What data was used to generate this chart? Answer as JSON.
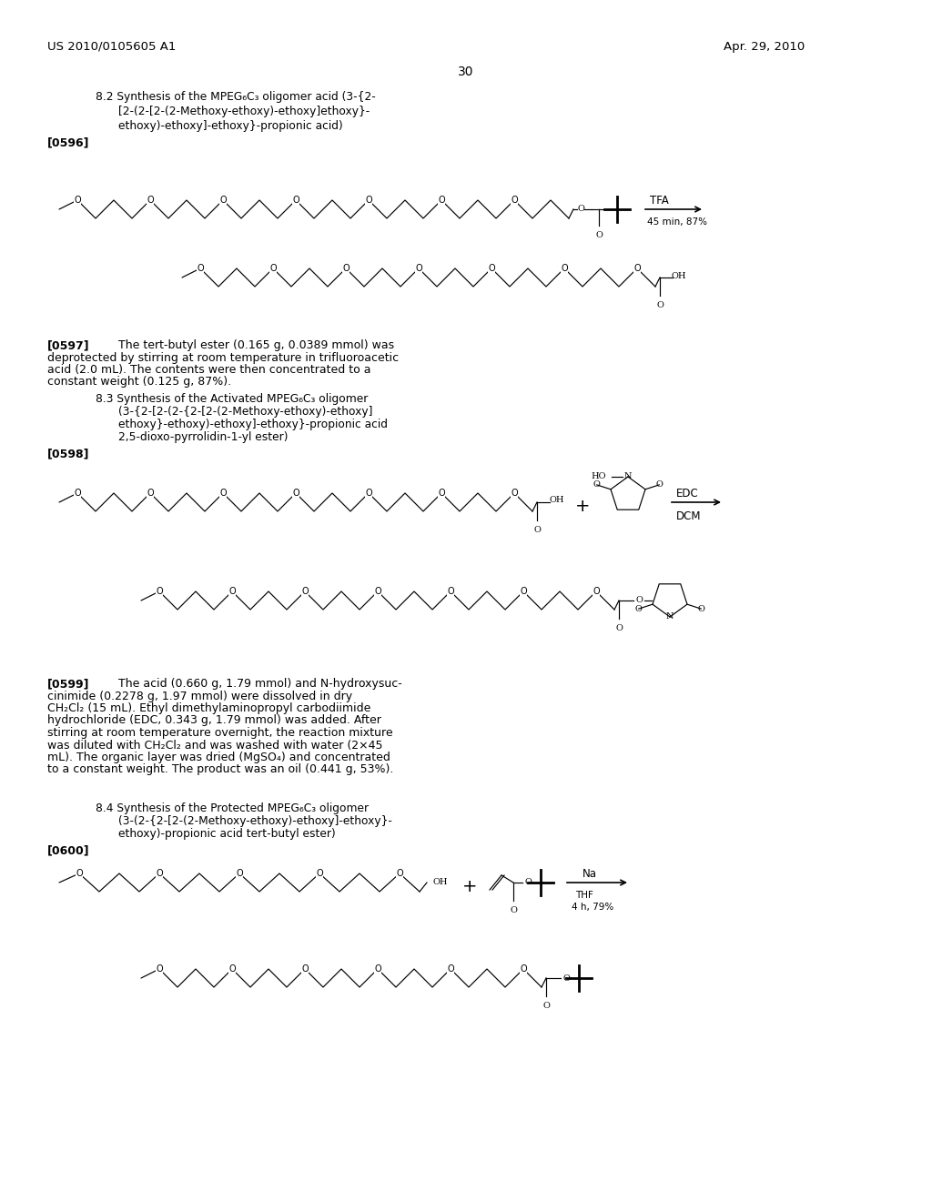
{
  "bg_color": "#ffffff",
  "header_left": "US 2010/0105605 A1",
  "header_right": "Apr. 29, 2010",
  "page_number": "30",
  "section_82_title_line1": "8.2 Synthesis of the MPEG₆C₃ oligomer acid (3-{2-",
  "section_82_title_line2": "[2-(2-[2-(2-Methoxy-ethoxy)-ethoxy]ethoxy}-",
  "section_82_title_line3": "ethoxy)-ethoxy]-ethoxy}-propionic acid)",
  "ref_596": "[0596]",
  "reaction_arrow_1_label_top": "TFA",
  "reaction_arrow_1_label_bot": "45 min, 87%",
  "ref_597_bold": "[0597]",
  "ref_597_body": "   The tert-butyl ester (0.165 g, 0.0389 mmol) was\ndeprotected by stirring at room temperature in trifluoroacetic\nacid (2.0 mL). The contents were then concentrated to a\nconstant weight (0.125 g, 87%).",
  "section_83_title_line1": "8.3 Synthesis of the Activated MPEG₆C₃ oligomer",
  "section_83_title_line2": "(3-{2-[2-(2-{2-[2-(2-Methoxy-ethoxy)-ethoxy]",
  "section_83_title_line3": "ethoxy}-ethoxy)-ethoxy]-ethoxy}-propionic acid",
  "section_83_title_line4": "2,5-dioxo-pyrrolidin-1-yl ester)",
  "ref_598": "[0598]",
  "reaction_arrow_2_label_top": "EDC",
  "reaction_arrow_2_label_bot": "DCM",
  "ref_599_bold": "[0599]",
  "ref_599_body": "   The acid (0.660 g, 1.79 mmol) and N-hydroxysuc-\ncinimide (0.2278 g, 1.97 mmol) were dissolved in dry\nCH₂Cl₂ (15 mL). Ethyl dimethylaminopropyl carbodiimide\nhydrochloride (EDC, 0.343 g, 1.79 mmol) was added. After\nstirring at room temperature overnight, the reaction mixture\nwas diluted with CH₂Cl₂ and was washed with water (2×45\nmL). The organic layer was dried (MgSO₄) and concentrated\nto a constant weight. The product was an oil (0.441 g, 53%).",
  "section_84_title_line1": "8.4 Synthesis of the Protected MPEG₆C₃ oligomer",
  "section_84_title_line2": "(3-(2-{2-[2-(2-Methoxy-ethoxy)-ethoxy]-ethoxy}-",
  "section_84_title_line3": "ethoxy)-propionic acid tert-butyl ester)",
  "ref_600": "[0600]",
  "reaction_arrow_3_label_top": "Na",
  "reaction_arrow_3_label_bot_line1": "THF",
  "reaction_arrow_3_label_bot_line2": "4 h, 79%"
}
